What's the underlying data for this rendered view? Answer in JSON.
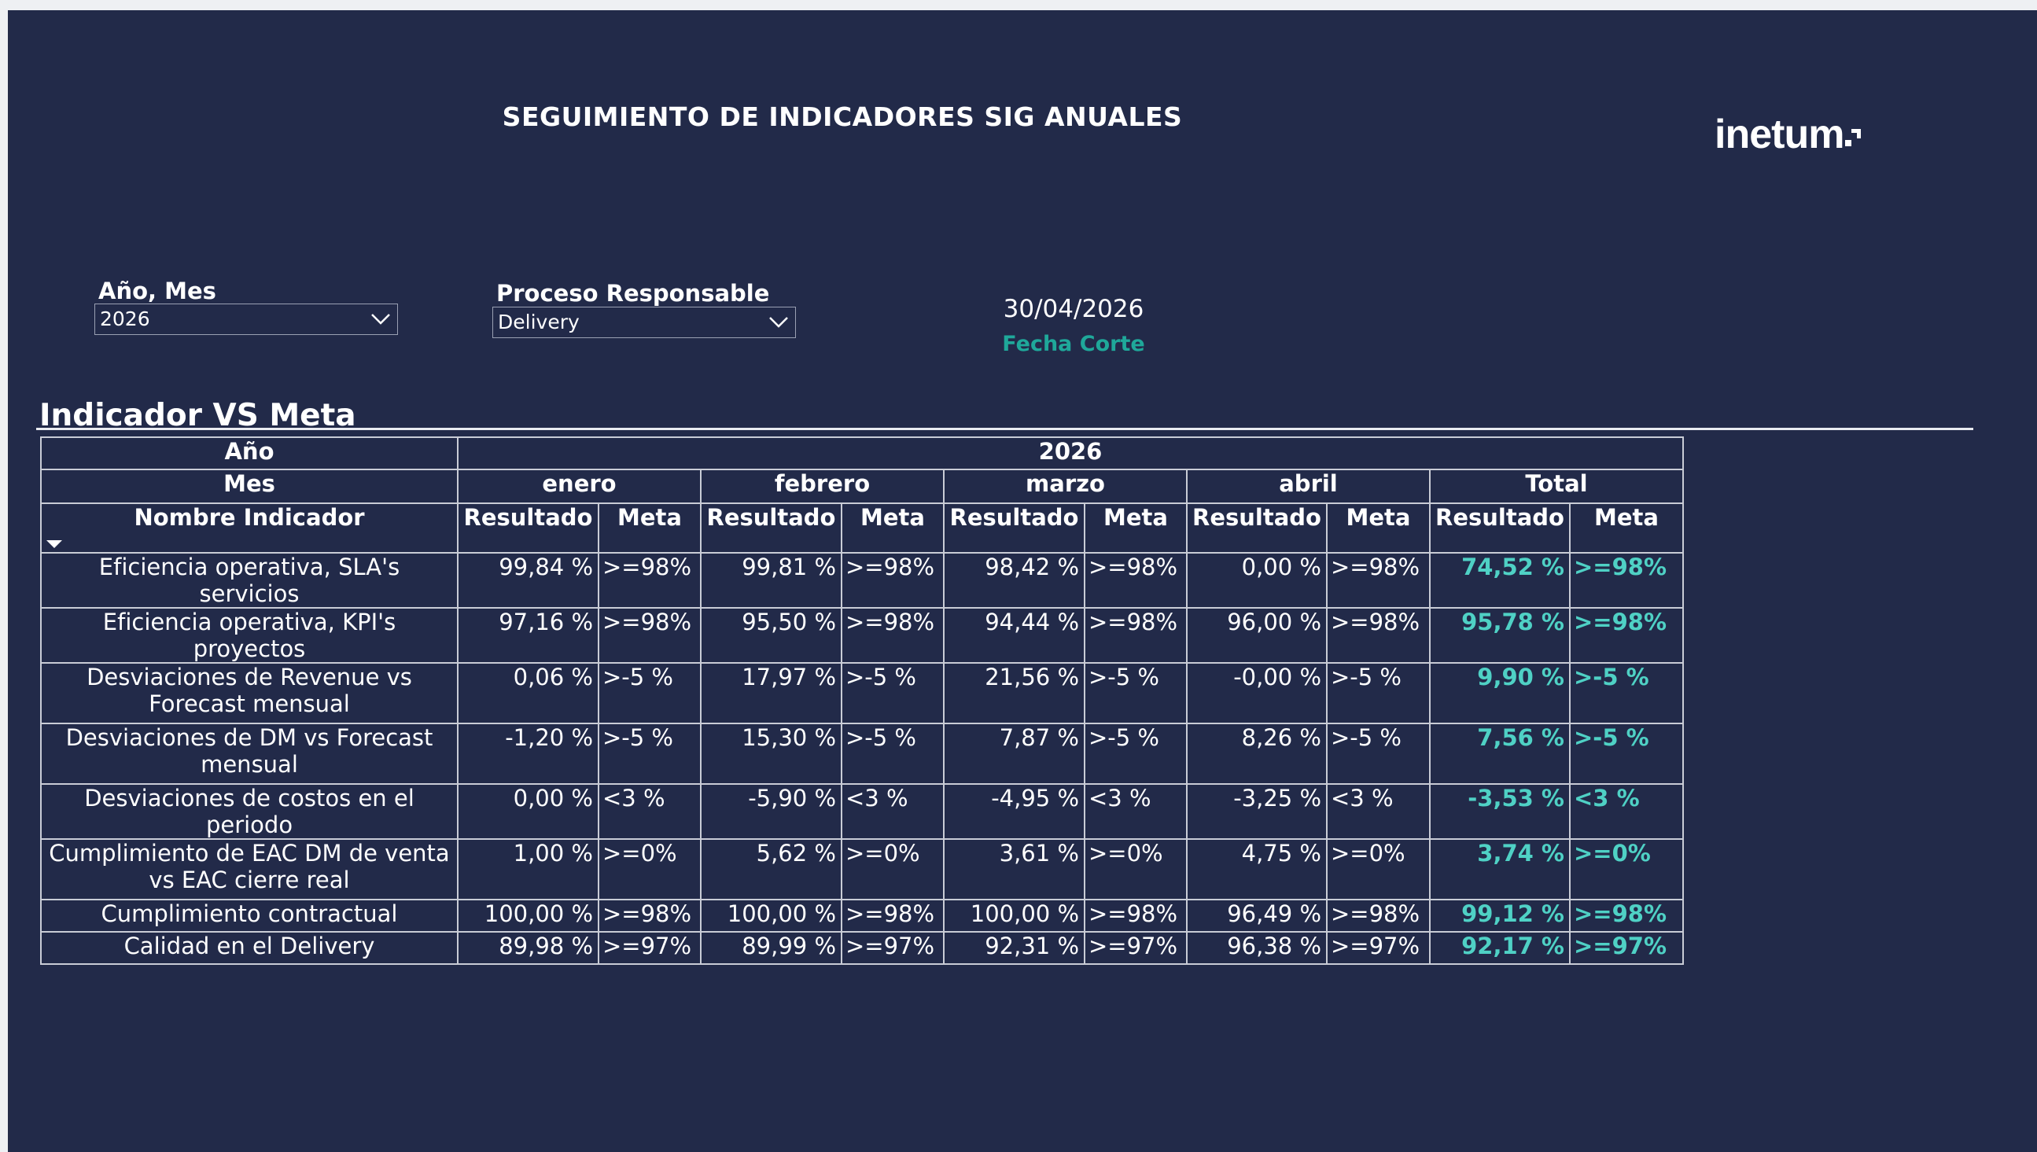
{
  "header": {
    "title": "SEGUIMIENTO DE INDICADORES SIG ANUALES",
    "logo": "inetum"
  },
  "filters": [
    {
      "label": "Año, Mes",
      "value": "2026"
    },
    {
      "label": "Proceso Responsable",
      "value": "Delivery"
    }
  ],
  "cutoff": {
    "date": "30/04/2026",
    "label": "Fecha Corte"
  },
  "table": {
    "title": "Indicador VS Meta",
    "year_label": "Año",
    "year": "2026",
    "month_label": "Mes",
    "months": [
      "enero",
      "febrero",
      "marzo",
      "abril",
      "Total"
    ],
    "name_label": "Nombre Indicador",
    "result_label": "Resultado",
    "goal_label": "Meta",
    "rows": [
      {
        "name": "Eficiencia operativa, SLA's servicios",
        "cells": [
          "99,84 %",
          ">=98%",
          "99,81 %",
          ">=98%",
          "98,42 %",
          ">=98%",
          "0,00 %",
          ">=98%",
          "74,52 %",
          ">=98%"
        ]
      },
      {
        "name": "Eficiencia operativa, KPI's proyectos",
        "cells": [
          "97,16 %",
          ">=98%",
          "95,50 %",
          ">=98%",
          "94,44 %",
          ">=98%",
          "96,00 %",
          ">=98%",
          "95,78 %",
          ">=98%"
        ]
      },
      {
        "name": "Desviaciones de Revenue vs Forecast mensual",
        "cells": [
          "0,06 %",
          ">-5 %",
          "17,97 %",
          ">-5 %",
          "21,56 %",
          ">-5 %",
          "-0,00 %",
          ">-5 %",
          "9,90 %",
          ">-5 %"
        ]
      },
      {
        "name": "Desviaciones de DM vs Forecast mensual",
        "cells": [
          "-1,20 %",
          ">-5 %",
          "15,30 %",
          ">-5 %",
          "7,87 %",
          ">-5 %",
          "8,26 %",
          ">-5 %",
          "7,56 %",
          ">-5 %"
        ]
      },
      {
        "name": "Desviaciones de costos en el periodo",
        "cells": [
          "0,00 %",
          "<3 %",
          "-5,90 %",
          "<3 %",
          "-4,95 %",
          "<3 %",
          "-3,25 %",
          "<3 %",
          "-3,53 %",
          "<3 %"
        ]
      },
      {
        "name": "Cumplimiento de EAC DM de venta vs EAC cierre real",
        "cells": [
          "1,00 %",
          ">=0%",
          "5,62 %",
          ">=0%",
          "3,61 %",
          ">=0%",
          "4,75 %",
          ">=0%",
          "3,74 %",
          ">=0%"
        ]
      },
      {
        "name": "Cumplimiento contractual",
        "cells": [
          "100,00 %",
          ">=98%",
          "100,00 %",
          ">=98%",
          "100,00 %",
          ">=98%",
          "96,49 %",
          ">=98%",
          "99,12 %",
          ">=98%"
        ]
      },
      {
        "name": "Calidad en el Delivery",
        "cells": [
          "89,98 %",
          ">=97%",
          "89,99 %",
          ">=97%",
          "92,31 %",
          ">=97%",
          "96,38 %",
          ">=97%",
          "92,17 %",
          ">=97%"
        ]
      }
    ]
  }
}
